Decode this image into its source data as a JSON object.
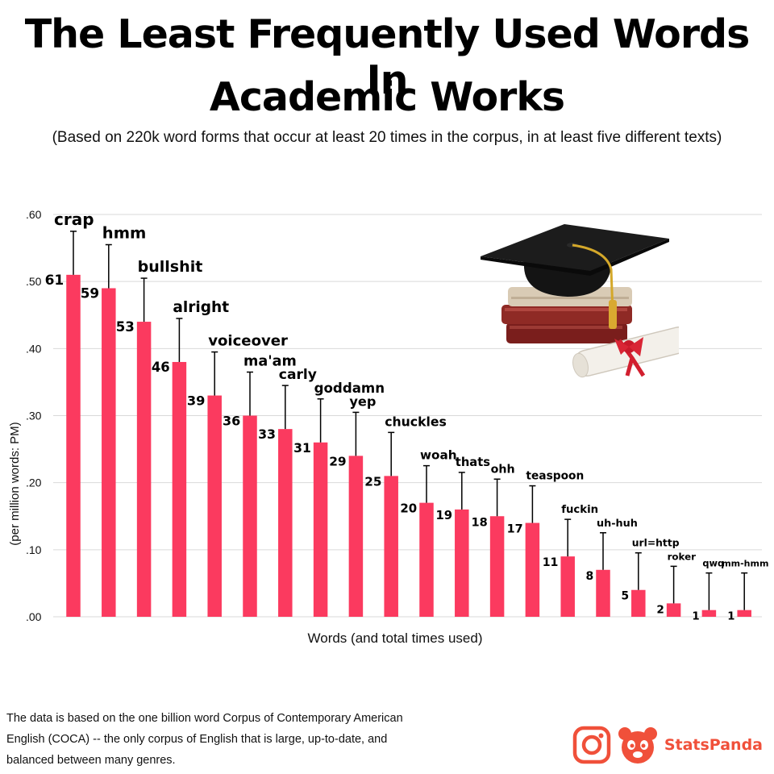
{
  "header": {
    "title_line1": "The Least Frequently Used Words In",
    "title_line2": "Academic Works",
    "subtitle": "(Based on 220k word forms that occur at least 20 times in the corpus, in at least five different texts)"
  },
  "footer": {
    "note": "The data is based on the one billion word Corpus of Contemporary American English (COCA) -- the only corpus of English that is large, up-to-date, and balanced between many genres.",
    "brand": "StatsPanda",
    "instagram_icon": "instagram-icon",
    "panda_icon": "panda-logo-icon"
  },
  "colors": {
    "bar": "#fb3a5f",
    "grid": "#d9d9d9",
    "brand": "#f0503a"
  },
  "chart_data": {
    "type": "bar",
    "xlabel": "Words (and total times used)",
    "ylabel": "(per million words: PM)",
    "ylim": [
      0,
      0.6
    ],
    "yticks": [
      0,
      0.1,
      0.2,
      0.3,
      0.4,
      0.5,
      0.6
    ],
    "ytick_labels": [
      ".00",
      ".10",
      ".20",
      ".30",
      ".40",
      ".50",
      ".60"
    ],
    "grid": true,
    "categories": [
      "crap",
      "hmm",
      "bullshit",
      "alright",
      "voiceover",
      "ma'am",
      "carly",
      "goddamn",
      "yep",
      "chuckles",
      "woah",
      "thats",
      "ohh",
      "teaspoon",
      "fuckin",
      "uh-huh",
      "url=http",
      "roker",
      "qwq",
      "mm-hmm"
    ],
    "counts": [
      61,
      59,
      53,
      46,
      39,
      36,
      33,
      31,
      29,
      25,
      20,
      19,
      18,
      17,
      11,
      8,
      5,
      2,
      1,
      1
    ],
    "values": [
      0.51,
      0.49,
      0.44,
      0.38,
      0.33,
      0.3,
      0.28,
      0.26,
      0.24,
      0.21,
      0.17,
      0.16,
      0.15,
      0.14,
      0.09,
      0.07,
      0.04,
      0.02,
      0.01,
      0.01
    ]
  }
}
